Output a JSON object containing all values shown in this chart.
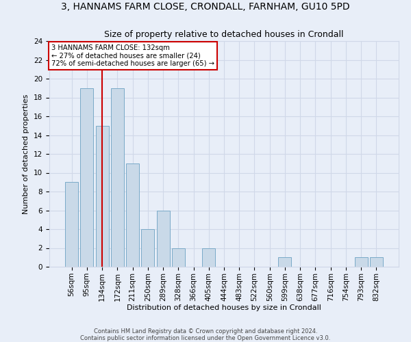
{
  "title": "3, HANNAMS FARM CLOSE, CRONDALL, FARNHAM, GU10 5PD",
  "subtitle": "Size of property relative to detached houses in Crondall",
  "xlabel": "Distribution of detached houses by size in Crondall",
  "ylabel": "Number of detached properties",
  "categories": [
    "56sqm",
    "95sqm",
    "134sqm",
    "172sqm",
    "211sqm",
    "250sqm",
    "289sqm",
    "328sqm",
    "366sqm",
    "405sqm",
    "444sqm",
    "483sqm",
    "522sqm",
    "560sqm",
    "599sqm",
    "638sqm",
    "677sqm",
    "716sqm",
    "754sqm",
    "793sqm",
    "832sqm"
  ],
  "values": [
    9,
    19,
    15,
    19,
    11,
    4,
    6,
    2,
    0,
    2,
    0,
    0,
    0,
    0,
    1,
    0,
    0,
    0,
    0,
    1,
    1
  ],
  "bar_color": "#c9d9e8",
  "bar_edge_color": "#7aaac8",
  "vline_x": 2.0,
  "vline_color": "#cc0000",
  "annotation_box_text": "3 HANNAMS FARM CLOSE: 132sqm\n← 27% of detached houses are smaller (24)\n72% of semi-detached houses are larger (65) →",
  "annotation_box_color": "#ffffff",
  "annotation_box_edge_color": "#cc0000",
  "ylim": [
    0,
    24
  ],
  "yticks": [
    0,
    2,
    4,
    6,
    8,
    10,
    12,
    14,
    16,
    18,
    20,
    22,
    24
  ],
  "grid_color": "#d0d8e8",
  "background_color": "#e8eef8",
  "footer_line1": "Contains HM Land Registry data © Crown copyright and database right 2024.",
  "footer_line2": "Contains public sector information licensed under the Open Government Licence v3.0.",
  "title_fontsize": 10,
  "subtitle_fontsize": 9,
  "axis_label_fontsize": 8,
  "tick_fontsize": 7.5
}
